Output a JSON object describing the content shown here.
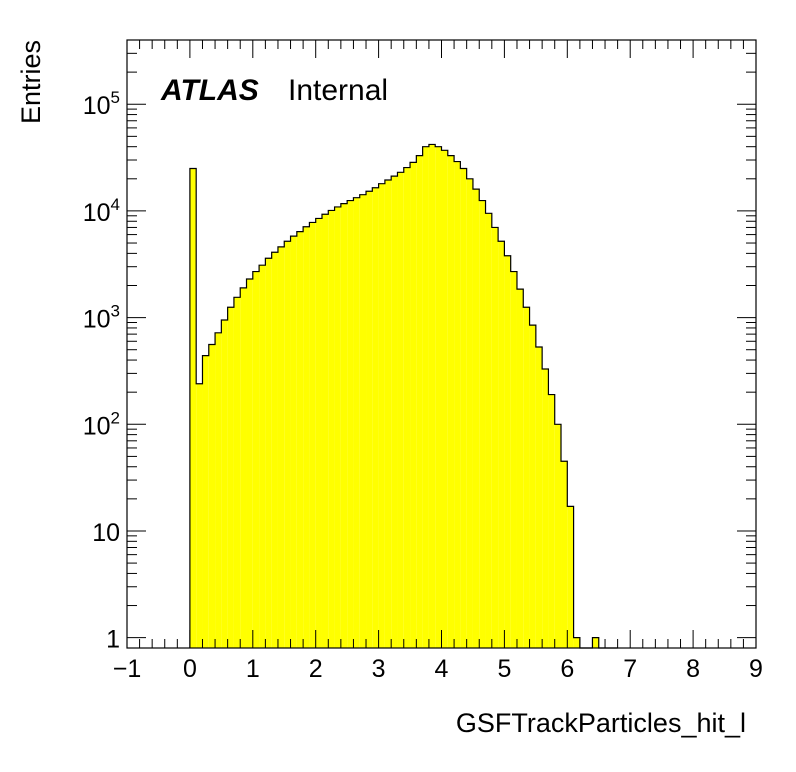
{
  "chart_data": {
    "type": "bar",
    "histogram": true,
    "x": [
      0.0,
      0.1,
      0.2,
      0.3,
      0.4,
      0.5,
      0.6,
      0.7,
      0.8,
      0.9,
      1.0,
      1.1,
      1.2,
      1.3,
      1.4,
      1.5,
      1.6,
      1.7,
      1.8,
      1.9,
      2.0,
      2.1,
      2.2,
      2.3,
      2.4,
      2.5,
      2.6,
      2.7,
      2.8,
      2.9,
      3.0,
      3.1,
      3.2,
      3.3,
      3.4,
      3.5,
      3.6,
      3.7,
      3.8,
      3.9,
      4.0,
      4.1,
      4.2,
      4.3,
      4.4,
      4.5,
      4.6,
      4.7,
      4.8,
      4.9,
      5.0,
      5.1,
      5.2,
      5.3,
      5.4,
      5.5,
      5.6,
      5.7,
      5.8,
      5.9,
      6.0,
      6.1,
      6.2,
      6.3,
      6.4,
      6.5,
      6.6,
      6.7
    ],
    "bin_width": 0.1,
    "values": [
      25000,
      240,
      440,
      560,
      720,
      950,
      1250,
      1550,
      1900,
      2300,
      2700,
      3100,
      3600,
      4100,
      4600,
      5200,
      5800,
      6400,
      7100,
      7800,
      8500,
      9300,
      10100,
      10900,
      11700,
      12500,
      13300,
      14200,
      15300,
      16500,
      18000,
      19500,
      21200,
      23000,
      25500,
      28500,
      33000,
      40000,
      42000,
      40000,
      37000,
      33000,
      29000,
      25000,
      20000,
      16000,
      12500,
      9500,
      7000,
      5200,
      3800,
      2700,
      1850,
      1250,
      850,
      530,
      330,
      190,
      100,
      45,
      17,
      1,
      0,
      0,
      1,
      0,
      0,
      0
    ],
    "xlabel": "GSFTrackParticles_hit_l",
    "ylabel": "Entries",
    "xlim": [
      -1,
      9
    ],
    "ylim": [
      0.8,
      400000
    ],
    "log_y": true,
    "x_ticks": [
      "−1",
      "0",
      "1",
      "2",
      "3",
      "4",
      "5",
      "6",
      "7",
      "8",
      "9"
    ],
    "y_tick_values": [
      1,
      10,
      100,
      1000,
      10000,
      100000
    ],
    "y_ticks": [
      {
        "base": "1",
        "exp": ""
      },
      {
        "base": "10",
        "exp": ""
      },
      {
        "base": "10",
        "exp": "2"
      },
      {
        "base": "10",
        "exp": "3"
      },
      {
        "base": "10",
        "exp": "4"
      },
      {
        "base": "10",
        "exp": "5"
      }
    ],
    "fill_color": "#ffff00",
    "line_color": "#000000",
    "grid": false,
    "annotation": {
      "bold": "ATLAS",
      "normal": "Internal"
    }
  }
}
